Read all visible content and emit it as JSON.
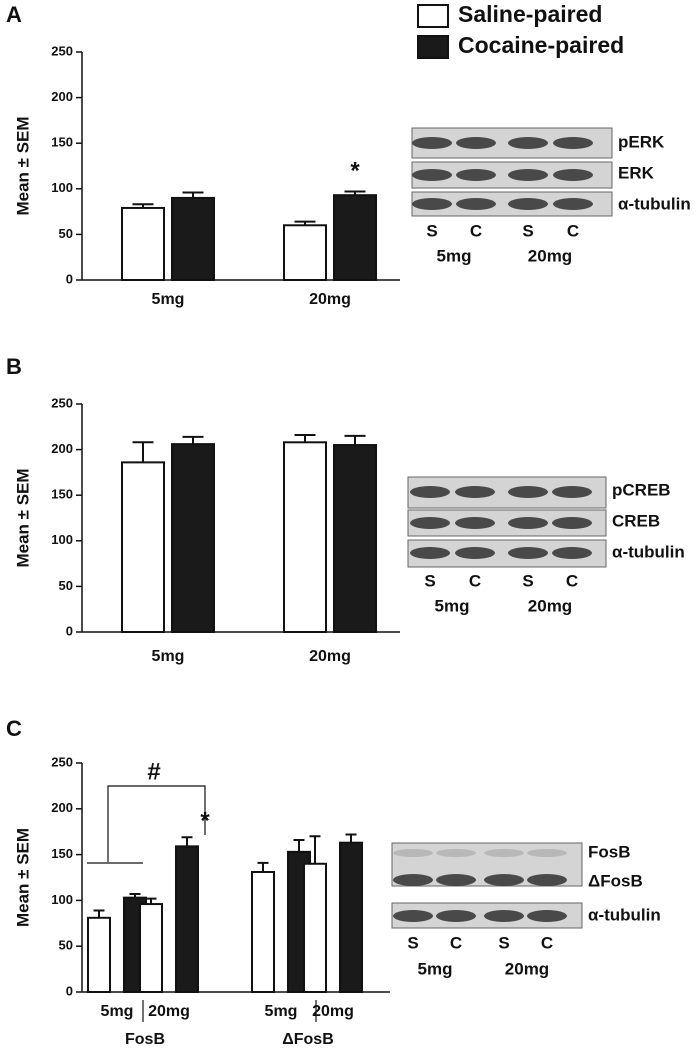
{
  "chart_data": [
    {
      "type": "bar",
      "panel": "A",
      "ylabel": "Mean ± SEM",
      "categories": [
        "5mg",
        "20mg"
      ],
      "series": [
        {
          "name": "Saline-paired",
          "color": "#ffffff",
          "values": [
            79,
            60
          ],
          "errors": [
            4,
            4
          ]
        },
        {
          "name": "Cocaine-paired",
          "color": "#1a1a1a",
          "values": [
            90,
            93
          ],
          "errors": [
            6,
            4
          ]
        }
      ],
      "ylim": [
        0,
        250
      ],
      "yticks": [
        0,
        50,
        100,
        150,
        200,
        250
      ],
      "annotations": [
        "*"
      ],
      "blot": {
        "bands": [
          "pERK",
          "ERK",
          "α-tubulin"
        ],
        "lanes": [
          "S",
          "C",
          "S",
          "C"
        ],
        "doses": [
          "5mg",
          "20mg"
        ]
      }
    },
    {
      "type": "bar",
      "panel": "B",
      "ylabel": "Mean ± SEM",
      "categories": [
        "5mg",
        "20mg"
      ],
      "series": [
        {
          "color": "#ffffff",
          "values": [
            186,
            208
          ],
          "errors": [
            22,
            8
          ]
        },
        {
          "color": "#1a1a1a",
          "values": [
            206,
            205
          ],
          "errors": [
            8,
            10
          ]
        }
      ],
      "ylim": [
        0,
        250
      ],
      "yticks": [
        0,
        50,
        100,
        150,
        200,
        250
      ],
      "blot": {
        "bands": [
          "pCREB",
          "CREB",
          "α-tubulin"
        ],
        "lanes": [
          "S",
          "C",
          "S",
          "C"
        ],
        "doses": [
          "5mg",
          "20mg"
        ]
      }
    },
    {
      "type": "bar",
      "panel": "C",
      "ylabel": "Mean ± SEM",
      "categories": [
        "5mg",
        "20mg",
        "5mg",
        "20mg"
      ],
      "groups": [
        "FosB",
        "ΔFosB"
      ],
      "series": [
        {
          "color": "#ffffff",
          "values": [
            81,
            96,
            131,
            140
          ],
          "errors": [
            8,
            6,
            10,
            30
          ]
        },
        {
          "color": "#1a1a1a",
          "values": [
            103,
            159,
            153,
            163
          ],
          "errors": [
            4,
            10,
            13,
            9
          ]
        }
      ],
      "ylim": [
        0,
        250
      ],
      "yticks": [
        0,
        50,
        100,
        150,
        200,
        250
      ],
      "annotations": [
        "#",
        "*"
      ],
      "blot": {
        "bands": [
          "FosB",
          "ΔFosB",
          "α-tubulin"
        ],
        "lanes": [
          "S",
          "C",
          "S",
          "C"
        ],
        "doses": [
          "5mg",
          "20mg"
        ]
      }
    }
  ]
}
